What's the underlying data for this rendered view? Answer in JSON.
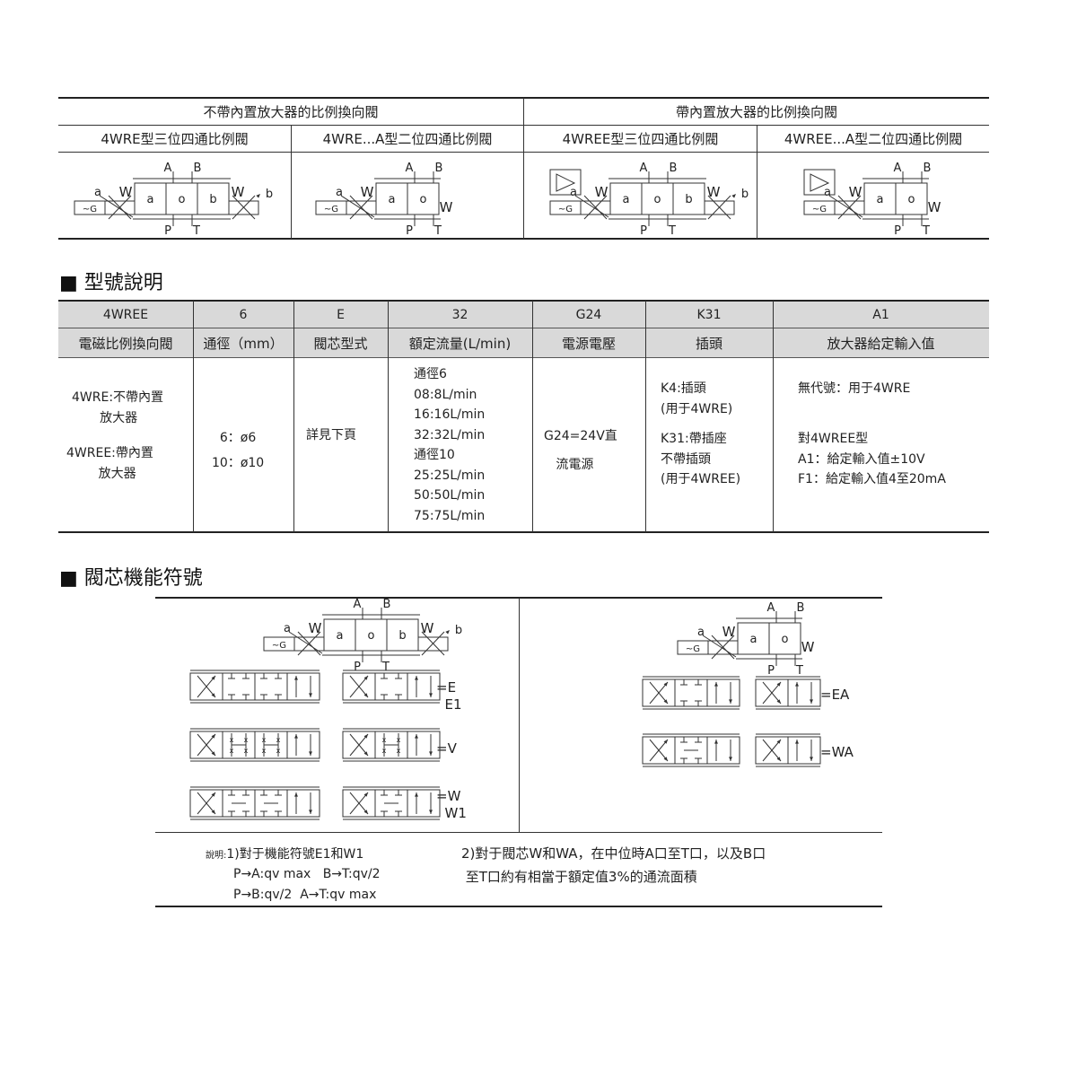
{
  "top_table": {
    "group_headers": [
      "不帶內置放大器的比例換向閥",
      "帶內置放大器的比例換向閥"
    ],
    "sub_headers": [
      "4WRE型三位四通比例閥",
      "4WRE...A型二位四通比例閥",
      "4WREE型三位四通比例閥",
      "4WREE...A型二位四通比例閥"
    ]
  },
  "symbol_labels": {
    "a": "a",
    "o": "o",
    "b": "b",
    "A": "A",
    "B": "B",
    "P": "P",
    "T": "T",
    "W": "W",
    "G": "~G"
  },
  "model_section": {
    "title": "■ 型號說明",
    "codes": [
      "4WREE",
      "6",
      "E",
      "32",
      "G24",
      "K31",
      "A1"
    ],
    "labels": [
      "電磁比例換向閥",
      "通徑（mm）",
      "閥芯型式",
      "額定流量(L/min)",
      "電源電壓",
      "插頭",
      "放大器給定輸入值"
    ],
    "details": {
      "type_1": "4WRE:不帶內置\n       放大器",
      "type_2": "4WREE:帶內置\n        放大器",
      "size": "  6：ø6\n10：ø10",
      "spool": "詳見下頁",
      "flow": "通徑6\n08:8L/min\n16:16L/min\n32:32L/min\n通徑10\n25:25L/min\n50:50L/min\n75:75L/min",
      "voltage": "G24=24V直\n   流電源",
      "plug_1": "K4:插頭\n(用于4WRE)",
      "plug_2": "K31:帶插座\n不帶插頭\n(用于4WREE)",
      "input_1": "無代號：用于4WRE",
      "input_2": "對4WREE型\nA1：給定輸入值±10V\nF1：給定輸入值4至20mA"
    }
  },
  "spool_section": {
    "title": "■ 閥芯機能符號",
    "left_codes": [
      "=E\n  E1",
      "=V",
      "=W\n  W1"
    ],
    "right_codes": [
      "=EA",
      "=WA"
    ]
  },
  "notes": {
    "note_1_prefix": "說明:",
    "note_1": "1)對于機能符號E1和W1",
    "note_1_line2": "P→A:qv max   B→T:qv/2",
    "note_1_line3": "P→B:qv/2  A→T:qv max",
    "note_2": "2)對于閥芯W和WA，在中位時A口至T口，以及B口\n 至T口約有相當于額定值3%的通流面積"
  }
}
